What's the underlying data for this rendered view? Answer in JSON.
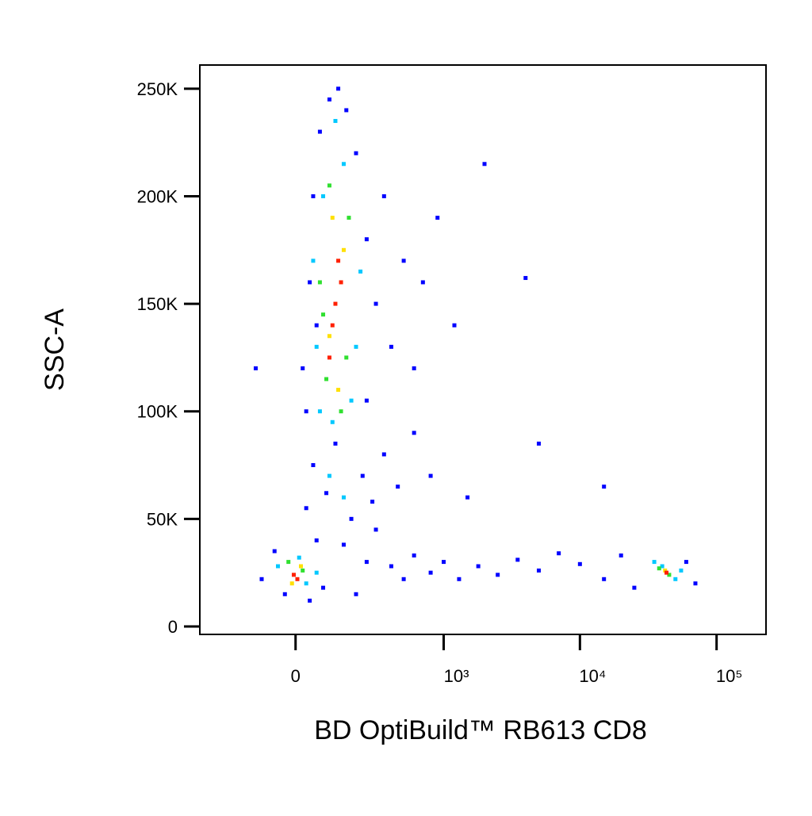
{
  "chart_data": {
    "type": "scatter",
    "xlabel": "BD OptiBuild™ RB613 CD8",
    "ylabel": "SSC-A",
    "xscale": "asinh",
    "xlim": [
      -400,
      230000
    ],
    "ylim": [
      -3700,
      261000
    ],
    "xticks": [
      0,
      {
        "value": 1000,
        "label": "10³"
      },
      {
        "value": 10000,
        "label": "10⁴"
      },
      {
        "value": 100000,
        "label": "10⁵"
      }
    ],
    "yticks": [
      0,
      {
        "value": 50000,
        "label": "50K"
      },
      {
        "value": 100000,
        "label": "100K"
      },
      {
        "value": 150000,
        "label": "150K"
      },
      {
        "value": 200000,
        "label": "200K"
      },
      {
        "value": 250000,
        "label": "250K"
      }
    ],
    "series": [
      {
        "color": "#0000ff",
        "x": [
          -100,
          -60,
          -30,
          40,
          60,
          80,
          150,
          200,
          250,
          300,
          400,
          500,
          600,
          800,
          1000,
          1300,
          1800,
          2500,
          3500,
          5000,
          7000,
          10000,
          15000,
          20000,
          25000,
          60000,
          70000,
          30,
          50,
          90,
          120,
          180,
          230,
          280,
          350,
          450,
          600,
          800,
          1500,
          20,
          40,
          50,
          60,
          70,
          100,
          130,
          160,
          200,
          250,
          300,
          350,
          400,
          500,
          600,
          700,
          900,
          1200,
          2000,
          4000,
          5000,
          15000,
          -120,
          30,
          250
        ],
        "values": [
          22000,
          35000,
          15000,
          12000,
          40000,
          18000,
          38000,
          15000,
          30000,
          45000,
          28000,
          22000,
          33000,
          25000,
          30000,
          22000,
          28000,
          24000,
          31000,
          26000,
          34000,
          29000,
          22000,
          33000,
          18000,
          30000,
          20000,
          55000,
          75000,
          62000,
          85000,
          50000,
          70000,
          58000,
          80000,
          65000,
          90000,
          70000,
          60000,
          120000,
          160000,
          200000,
          140000,
          230000,
          245000,
          250000,
          240000,
          220000,
          180000,
          150000,
          200000,
          130000,
          170000,
          120000,
          160000,
          190000,
          140000,
          215000,
          162000,
          85000,
          65000,
          120000,
          100000,
          105000
        ]
      },
      {
        "color": "#00c8ff",
        "x": [
          -50,
          30,
          10,
          60,
          40000,
          50000,
          35000,
          55000,
          100,
          150,
          70,
          180,
          60,
          200,
          80,
          150,
          120,
          50,
          220,
          110
        ],
        "values": [
          28000,
          20000,
          32000,
          25000,
          28000,
          22000,
          30000,
          26000,
          70000,
          60000,
          100000,
          105000,
          130000,
          130000,
          200000,
          215000,
          235000,
          170000,
          165000,
          95000
        ]
      },
      {
        "color": "#30e030",
        "x": [
          -20,
          20,
          45000,
          38000,
          90,
          160,
          70,
          170,
          100,
          140,
          80
        ],
        "values": [
          30000,
          26000,
          24000,
          27000,
          115000,
          125000,
          160000,
          190000,
          205000,
          100000,
          145000
        ]
      },
      {
        "color": "#ffe000",
        "x": [
          -10,
          15,
          42000,
          100,
          150,
          110,
          130
        ],
        "values": [
          20000,
          28000,
          26000,
          135000,
          175000,
          190000,
          110000
        ]
      },
      {
        "color": "#ff2000",
        "x": [
          -5,
          5,
          43000,
          120,
          140,
          110,
          130,
          100
        ],
        "values": [
          24000,
          22000,
          25000,
          150000,
          160000,
          140000,
          170000,
          125000
        ]
      }
    ]
  }
}
